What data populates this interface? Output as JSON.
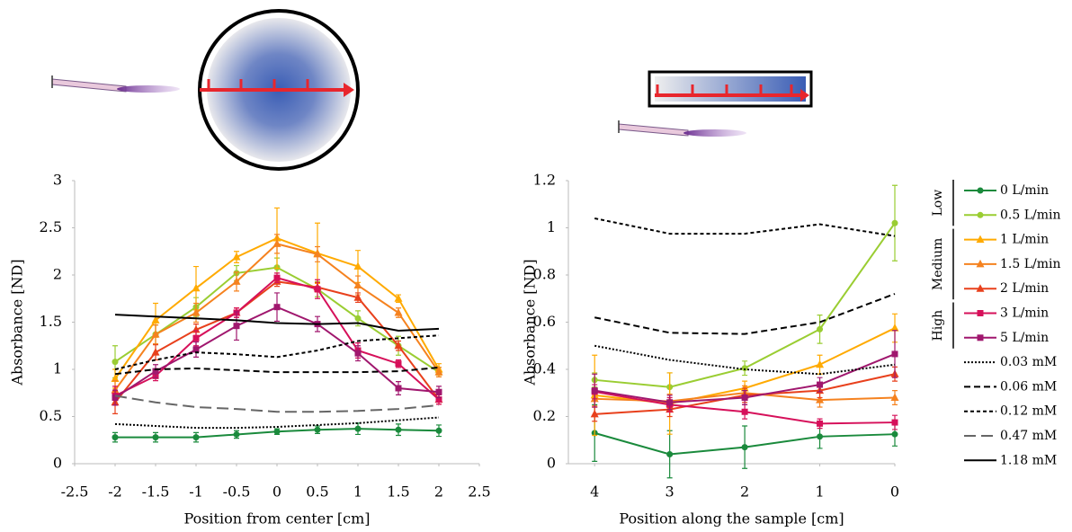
{
  "chart_data": [
    {
      "type": "line",
      "xlabel": "Position from center [cm]",
      "ylabel": "Absorbance [ND]",
      "x": [
        -2,
        -1.5,
        -1,
        -0.5,
        0,
        0.5,
        1,
        1.5,
        2
      ],
      "xlim": [
        -2.5,
        2.5
      ],
      "xticks": [
        -2.5,
        -2,
        -1.5,
        -1,
        -0.5,
        0,
        0.5,
        1,
        1.5,
        2,
        2.5
      ],
      "ylim": [
        0,
        3
      ],
      "yticks": [
        0,
        0.5,
        1,
        1.5,
        2,
        2.5,
        3
      ],
      "legend_groups": [
        "Low",
        "Medium",
        "High"
      ],
      "series": [
        {
          "name": "0 L/min",
          "color": "#1a8a3c",
          "marker": "circle",
          "dash": "solid",
          "values": [
            0.28,
            0.28,
            0.28,
            0.31,
            0.34,
            0.36,
            0.37,
            0.36,
            0.35
          ],
          "errors": [
            0.05,
            0.05,
            0.05,
            0.04,
            0.03,
            0.04,
            0.06,
            0.06,
            0.06
          ]
        },
        {
          "name": "0.5 L/min",
          "color": "#9acd32",
          "marker": "circle",
          "dash": "solid",
          "values": [
            1.08,
            1.37,
            1.66,
            2.02,
            2.08,
            1.85,
            1.54,
            1.25,
            0.97
          ],
          "errors": [
            0.17,
            0.1,
            0.1,
            0.08,
            0.1,
            0.08,
            0.08,
            0.1,
            0.05
          ]
        },
        {
          "name": "1 L/min",
          "color": "#ffaa00",
          "marker": "triangle",
          "dash": "solid",
          "values": [
            0.9,
            1.52,
            1.86,
            2.19,
            2.39,
            2.23,
            2.09,
            1.75,
            1.0
          ],
          "errors": [
            0.1,
            0.18,
            0.23,
            0.06,
            0.32,
            0.32,
            0.17,
            0.04,
            0.06
          ]
        },
        {
          "name": "1.5 L/min",
          "color": "#f5821f",
          "marker": "triangle",
          "dash": "solid",
          "values": [
            0.78,
            1.37,
            1.6,
            1.93,
            2.33,
            2.22,
            1.89,
            1.6,
            0.97
          ],
          "errors": [
            0.1,
            0.1,
            0.1,
            0.1,
            0.1,
            0.08,
            0.1,
            0.05,
            0.05
          ]
        },
        {
          "name": "2 L/min",
          "color": "#e8401c",
          "marker": "triangle",
          "dash": "solid",
          "values": [
            0.65,
            1.18,
            1.42,
            1.6,
            1.93,
            1.87,
            1.76,
            1.25,
            0.68
          ],
          "errors": [
            0.12,
            0.08,
            0.06,
            0.05,
            0.05,
            0.05,
            0.05,
            0.05,
            0.05
          ]
        },
        {
          "name": "3 L/min",
          "color": "#d6105a",
          "marker": "square",
          "dash": "solid",
          "values": [
            0.72,
            0.93,
            1.33,
            1.6,
            1.97,
            1.85,
            1.2,
            1.06,
            0.68
          ],
          "errors": [
            0.1,
            0.05,
            0.08,
            0.05,
            0.05,
            0.1,
            0.08,
            0.04,
            0.05
          ]
        },
        {
          "name": "5 L/min",
          "color": "#a0176e",
          "marker": "square",
          "dash": "solid",
          "values": [
            0.7,
            0.98,
            1.21,
            1.46,
            1.66,
            1.48,
            1.17,
            0.8,
            0.76
          ],
          "errors": [
            0.08,
            0.07,
            0.08,
            0.15,
            0.15,
            0.08,
            0.08,
            0.07,
            0.06
          ]
        },
        {
          "name": "0.03 mM",
          "color": "#000000",
          "marker": "none",
          "dash": "dotted",
          "values": [
            0.42,
            0.4,
            0.38,
            0.38,
            0.39,
            0.41,
            0.43,
            0.46,
            0.49
          ]
        },
        {
          "name": "0.06 mM",
          "color": "#000000",
          "marker": "none",
          "dash": "dashed",
          "values": [
            0.95,
            1.0,
            1.01,
            0.99,
            0.97,
            0.97,
            0.97,
            0.98,
            1.02
          ]
        },
        {
          "name": "0.12 mM",
          "color": "#000000",
          "marker": "none",
          "dash": "short-dashed",
          "values": [
            1.0,
            1.1,
            1.18,
            1.16,
            1.13,
            1.2,
            1.3,
            1.33,
            1.36
          ]
        },
        {
          "name": "0.47 mM",
          "color": "#666666",
          "marker": "none",
          "dash": "long-dashed",
          "values": [
            0.72,
            0.65,
            0.6,
            0.58,
            0.55,
            0.55,
            0.56,
            0.58,
            0.62
          ]
        },
        {
          "name": "1.18 mM",
          "color": "#000000",
          "marker": "none",
          "dash": "solid",
          "values": [
            1.58,
            1.56,
            1.54,
            1.52,
            1.49,
            1.48,
            1.49,
            1.41,
            1.43
          ]
        }
      ]
    },
    {
      "type": "line",
      "xlabel": "Position along the sample [cm]",
      "ylabel": "Absorbance [ND]",
      "x": [
        4,
        3,
        2,
        1,
        0
      ],
      "xlim": [
        4.35,
        0
      ],
      "xticks": [
        4,
        3,
        2,
        1,
        0
      ],
      "ylim": [
        0,
        1.2
      ],
      "yticks": [
        0,
        0.2,
        0.4,
        0.6,
        0.8,
        1,
        1.2
      ],
      "series": [
        {
          "color": "#1a8a3c",
          "marker": "circle",
          "dash": "solid",
          "values": [
            0.13,
            0.04,
            0.07,
            0.115,
            0.125
          ],
          "errors": [
            0.12,
            0.1,
            0.09,
            0.05,
            0.05
          ]
        },
        {
          "color": "#9acd32",
          "marker": "circle",
          "dash": "solid",
          "values": [
            0.355,
            0.325,
            0.405,
            0.57,
            1.02
          ],
          "errors": [
            0.03,
            0.06,
            0.03,
            0.06,
            0.16
          ]
        },
        {
          "color": "#ffaa00",
          "marker": "triangle",
          "dash": "solid",
          "values": [
            0.29,
            0.255,
            0.32,
            0.42,
            0.575
          ],
          "errors": [
            0.17,
            0.13,
            0.03,
            0.04,
            0.06
          ]
        },
        {
          "color": "#f5821f",
          "marker": "triangle",
          "dash": "solid",
          "values": [
            0.275,
            0.265,
            0.3,
            0.27,
            0.28
          ],
          "errors": [
            0.03,
            0.03,
            0.03,
            0.03,
            0.03
          ]
        },
        {
          "color": "#e8401c",
          "marker": "triangle",
          "dash": "solid",
          "values": [
            0.21,
            0.23,
            0.29,
            0.31,
            0.38
          ],
          "errors": [
            0.03,
            0.03,
            0.03,
            0.03,
            0.03
          ]
        },
        {
          "color": "#d6105a",
          "marker": "square",
          "dash": "solid",
          "values": [
            0.305,
            0.25,
            0.22,
            0.17,
            0.175
          ],
          "errors": [
            0.03,
            0.03,
            0.03,
            0.02,
            0.03
          ]
        },
        {
          "color": "#a0176e",
          "marker": "square",
          "dash": "solid",
          "values": [
            0.31,
            0.26,
            0.28,
            0.335,
            0.465
          ],
          "errors": [
            0.07,
            0.03,
            0.03,
            0.03,
            0.1
          ]
        },
        {
          "color": "#000000",
          "marker": "none",
          "dash": "dotted",
          "values": [
            0.5,
            0.44,
            0.4,
            0.38,
            0.42
          ]
        },
        {
          "color": "#000000",
          "marker": "none",
          "dash": "dashed",
          "values": [
            0.62,
            0.555,
            0.55,
            0.6,
            0.72
          ]
        },
        {
          "color": "#000000",
          "marker": "none",
          "dash": "short-dashed",
          "values": [
            1.04,
            0.975,
            0.975,
            1.015,
            0.965
          ]
        }
      ]
    }
  ]
}
